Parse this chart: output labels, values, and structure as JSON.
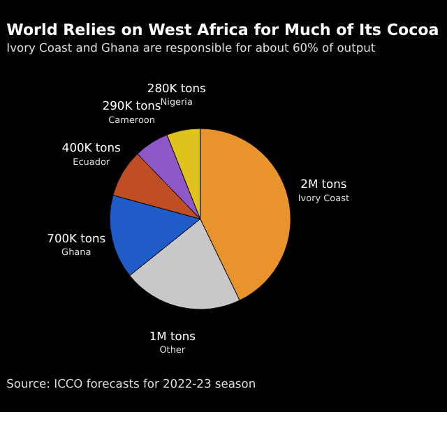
{
  "chart_data": {
    "type": "pie",
    "title": "World Relies on West Africa for Much of Its Cocoa",
    "subtitle": "Ivory Coast and Ghana are responsible for about 60% of output",
    "categories": [
      "Ivory Coast",
      "Other",
      "Ghana",
      "Ecuador",
      "Cameroon",
      "Nigeria"
    ],
    "values": [
      2000000,
      1000000,
      700000,
      400000,
      290000,
      280000
    ],
    "value_labels": [
      "2M tons",
      "1M tons",
      "700K tons",
      "400K tons",
      "290K tons",
      "280K tons"
    ],
    "colors": [
      "#e8932c",
      "#c8c8c8",
      "#1f5cc8",
      "#c04e24",
      "#8e58c8",
      "#e0c21c"
    ],
    "annotations": [
      "Source: ICCO forecasts for 2022-23 season"
    ],
    "legend": false
  }
}
